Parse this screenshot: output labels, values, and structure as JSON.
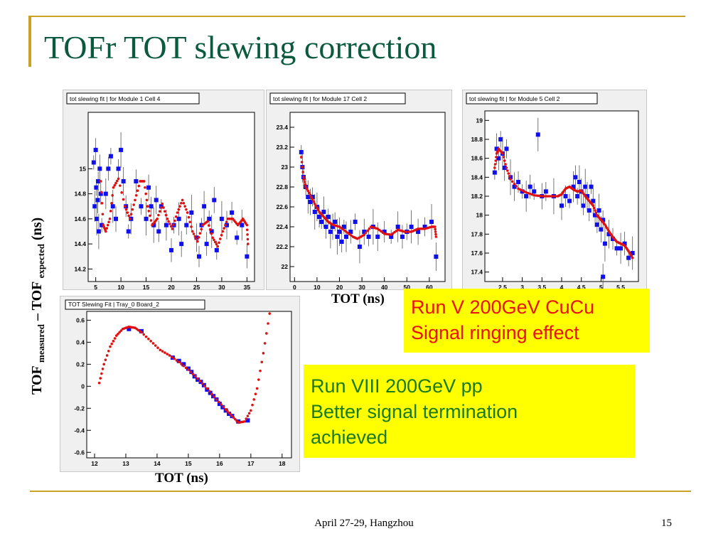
{
  "title": "TOFr TOT slewing correction",
  "y_axis_label": {
    "main1": "TOF",
    "sub1": "measured",
    "dash": " – TOF",
    "sub2": "expected",
    "tail": " (ns)"
  },
  "x_label_top": "TOT (ns)",
  "x_label_bottom": "TOT (ns)",
  "box_run5": {
    "line1": "Run V 200GeV CuCu",
    "line2": "Signal ringing effect"
  },
  "box_run8": {
    "line1": "Run VIII 200GeV pp",
    "line2": "Better signal termination",
    "line3": "achieved"
  },
  "footer": {
    "center": "April 27-29, Hangzhou",
    "page": "15"
  },
  "colors": {
    "title": "#0b5a3e",
    "marker": "#1010ee",
    "fit": "#e01010",
    "frame": "#c9a227",
    "highlight": "#ffff00"
  },
  "chart_data": [
    {
      "type": "scatter",
      "title": "tot slewing fit | for Module 1 Cell 4",
      "xlim": [
        3.5,
        36.5
      ],
      "ylim": [
        14.1,
        15.45
      ],
      "xticks": [
        5,
        10,
        15,
        20,
        25,
        30,
        35
      ],
      "yticks": [
        14.2,
        14.4,
        14.6,
        14.8,
        15
      ],
      "points": [
        [
          4.6,
          15.05
        ],
        [
          4.8,
          14.7
        ],
        [
          5.0,
          15.15
        ],
        [
          5.1,
          14.85
        ],
        [
          5.2,
          14.6
        ],
        [
          5.4,
          14.75
        ],
        [
          5.5,
          14.9
        ],
        [
          5.6,
          14.5
        ],
        [
          5.8,
          15.0
        ],
        [
          6.0,
          14.8
        ],
        [
          6.2,
          14.55
        ],
        [
          7.0,
          14.8
        ],
        [
          7.5,
          15.0
        ],
        [
          8.0,
          15.1
        ],
        [
          8.4,
          14.7
        ],
        [
          9.0,
          14.6
        ],
        [
          9.5,
          15.0
        ],
        [
          10.0,
          15.15
        ],
        [
          10.5,
          14.9
        ],
        [
          11.0,
          14.7
        ],
        [
          11.5,
          14.5
        ],
        [
          12.0,
          14.6
        ],
        [
          13.0,
          14.9
        ],
        [
          14.0,
          14.7
        ],
        [
          15.0,
          14.6
        ],
        [
          15.5,
          14.85
        ],
        [
          16.0,
          14.7
        ],
        [
          16.5,
          14.55
        ],
        [
          17.0,
          14.75
        ],
        [
          17.5,
          14.5
        ],
        [
          18.0,
          14.7
        ],
        [
          19.0,
          14.55
        ],
        [
          20.0,
          14.35
        ],
        [
          20.5,
          14.55
        ],
        [
          21.5,
          14.6
        ],
        [
          22.0,
          14.4
        ],
        [
          23.0,
          14.55
        ],
        [
          24.0,
          14.65
        ],
        [
          25.0,
          14.45
        ],
        [
          25.5,
          14.3
        ],
        [
          26.0,
          14.55
        ],
        [
          26.5,
          14.7
        ],
        [
          27.0,
          14.4
        ],
        [
          27.5,
          14.6
        ],
        [
          28.0,
          14.5
        ],
        [
          28.5,
          14.75
        ],
        [
          29.0,
          14.35
        ],
        [
          30.0,
          14.6
        ],
        [
          31.0,
          14.55
        ],
        [
          32.0,
          14.65
        ],
        [
          33.0,
          14.45
        ],
        [
          34.0,
          14.55
        ],
        [
          35.0,
          14.3
        ]
      ],
      "fit": [
        [
          6.0,
          14.9
        ],
        [
          6.5,
          14.55
        ],
        [
          7.0,
          14.5
        ],
        [
          7.8,
          14.6
        ],
        [
          8.5,
          14.85
        ],
        [
          9.5,
          14.92
        ],
        [
          10.8,
          14.7
        ],
        [
          11.8,
          14.6
        ],
        [
          12.8,
          14.75
        ],
        [
          13.8,
          14.9
        ],
        [
          14.6,
          14.9
        ],
        [
          15.3,
          14.7
        ],
        [
          16.2,
          14.55
        ],
        [
          17.2,
          14.6
        ],
        [
          18.2,
          14.72
        ],
        [
          19.2,
          14.6
        ],
        [
          20.2,
          14.52
        ],
        [
          21.2,
          14.65
        ],
        [
          22.2,
          14.75
        ],
        [
          23.2,
          14.65
        ],
        [
          24.2,
          14.5
        ],
        [
          25.2,
          14.42
        ],
        [
          26.2,
          14.55
        ],
        [
          27.2,
          14.58
        ],
        [
          28.2,
          14.45
        ],
        [
          29.2,
          14.38
        ],
        [
          30.2,
          14.5
        ],
        [
          31.2,
          14.6
        ],
        [
          32.2,
          14.6
        ],
        [
          33.2,
          14.55
        ],
        [
          34.2,
          14.6
        ],
        [
          35.0,
          14.55
        ],
        [
          35.2,
          14.4
        ]
      ]
    },
    {
      "type": "scatter",
      "title": "tot slewing fit | for Module 17 Cell 2",
      "xlim": [
        -2,
        67
      ],
      "ylim": [
        21.85,
        23.55
      ],
      "xticks": [
        0,
        10,
        20,
        30,
        40,
        50,
        60
      ],
      "yticks": [
        22,
        22.2,
        22.4,
        22.6,
        22.8,
        23,
        23.2,
        23.4
      ],
      "points": [
        [
          3,
          23.15
        ],
        [
          3.5,
          23.0
        ],
        [
          4,
          22.9
        ],
        [
          5,
          22.8
        ],
        [
          6,
          22.7
        ],
        [
          7,
          22.65
        ],
        [
          8,
          22.7
        ],
        [
          9,
          22.55
        ],
        [
          10,
          22.6
        ],
        [
          11,
          22.5
        ],
        [
          12,
          22.45
        ],
        [
          13,
          22.55
        ],
        [
          14,
          22.4
        ],
        [
          15,
          22.5
        ],
        [
          16,
          22.35
        ],
        [
          17,
          22.4
        ],
        [
          18,
          22.45
        ],
        [
          19,
          22.3
        ],
        [
          20,
          22.35
        ],
        [
          21,
          22.25
        ],
        [
          22,
          22.4
        ],
        [
          23,
          22.3
        ],
        [
          25,
          22.35
        ],
        [
          27,
          22.45
        ],
        [
          29,
          22.2
        ],
        [
          31,
          22.35
        ],
        [
          33,
          22.3
        ],
        [
          35,
          22.4
        ],
        [
          37,
          22.3
        ],
        [
          40,
          22.35
        ],
        [
          43,
          22.3
        ],
        [
          46,
          22.4
        ],
        [
          48,
          22.3
        ],
        [
          50,
          22.35
        ],
        [
          52,
          22.4
        ],
        [
          55,
          22.35
        ],
        [
          58,
          22.4
        ],
        [
          61,
          22.45
        ],
        [
          63,
          22.1
        ]
      ],
      "fit": [
        [
          3,
          23.1
        ],
        [
          4,
          22.9
        ],
        [
          5,
          22.8
        ],
        [
          7,
          22.72
        ],
        [
          9,
          22.63
        ],
        [
          11,
          22.55
        ],
        [
          13,
          22.5
        ],
        [
          15,
          22.45
        ],
        [
          17,
          22.42
        ],
        [
          20,
          22.4
        ],
        [
          23,
          22.35
        ],
        [
          26,
          22.3
        ],
        [
          28,
          22.28
        ],
        [
          31,
          22.32
        ],
        [
          34,
          22.4
        ],
        [
          37,
          22.38
        ],
        [
          40,
          22.33
        ],
        [
          43,
          22.32
        ],
        [
          46,
          22.37
        ],
        [
          49,
          22.35
        ],
        [
          52,
          22.35
        ],
        [
          55,
          22.38
        ],
        [
          58,
          22.38
        ],
        [
          61,
          22.4
        ],
        [
          62.5,
          22.4
        ],
        [
          63,
          22.3
        ]
      ]
    },
    {
      "type": "scatter",
      "title": "tot slewing fit | for Module 5 Cell 2",
      "xlim": [
        2.05,
        5.95
      ],
      "ylim": [
        17.3,
        19.1
      ],
      "xticks": [
        2.5,
        3,
        3.5,
        4,
        4.5,
        5,
        5.5
      ],
      "yticks": [
        17.4,
        17.6,
        17.8,
        18,
        18.2,
        18.4,
        18.6,
        18.8,
        19
      ],
      "points": [
        [
          2.3,
          18.45
        ],
        [
          2.35,
          18.7
        ],
        [
          2.4,
          18.6
        ],
        [
          2.45,
          18.8
        ],
        [
          2.5,
          18.65
        ],
        [
          2.55,
          18.5
        ],
        [
          2.6,
          18.7
        ],
        [
          2.7,
          18.4
        ],
        [
          2.8,
          18.3
        ],
        [
          2.9,
          18.35
        ],
        [
          3.0,
          18.25
        ],
        [
          3.1,
          18.2
        ],
        [
          3.2,
          18.3
        ],
        [
          3.3,
          18.25
        ],
        [
          3.4,
          18.85
        ],
        [
          3.5,
          18.2
        ],
        [
          3.6,
          18.25
        ],
        [
          3.8,
          18.2
        ],
        [
          4.0,
          18.1
        ],
        [
          4.1,
          18.2
        ],
        [
          4.2,
          18.15
        ],
        [
          4.3,
          18.3
        ],
        [
          4.35,
          18.4
        ],
        [
          4.4,
          18.2
        ],
        [
          4.45,
          18.35
        ],
        [
          4.5,
          18.25
        ],
        [
          4.55,
          18.1
        ],
        [
          4.6,
          18.3
        ],
        [
          4.65,
          18.2
        ],
        [
          4.7,
          18.05
        ],
        [
          4.75,
          18.3
        ],
        [
          4.8,
          18.15
        ],
        [
          4.85,
          18.0
        ],
        [
          4.9,
          17.9
        ],
        [
          4.95,
          18.05
        ],
        [
          5.0,
          17.85
        ],
        [
          5.05,
          17.95
        ],
        [
          5.1,
          17.7
        ],
        [
          5.2,
          17.8
        ],
        [
          5.3,
          17.75
        ],
        [
          5.4,
          17.65
        ],
        [
          5.5,
          17.65
        ],
        [
          5.6,
          17.7
        ],
        [
          5.7,
          17.55
        ],
        [
          5.8,
          17.6
        ],
        [
          5.05,
          17.35
        ]
      ],
      "fit": [
        [
          2.3,
          18.5
        ],
        [
          2.35,
          18.65
        ],
        [
          2.4,
          18.7
        ],
        [
          2.5,
          18.65
        ],
        [
          2.6,
          18.5
        ],
        [
          2.7,
          18.38
        ],
        [
          2.9,
          18.28
        ],
        [
          3.1,
          18.24
        ],
        [
          3.3,
          18.21
        ],
        [
          3.5,
          18.2
        ],
        [
          3.7,
          18.2
        ],
        [
          3.9,
          18.2
        ],
        [
          4.0,
          18.22
        ],
        [
          4.1,
          18.28
        ],
        [
          4.2,
          18.3
        ],
        [
          4.3,
          18.27
        ],
        [
          4.4,
          18.25
        ],
        [
          4.5,
          18.26
        ],
        [
          4.6,
          18.2
        ],
        [
          4.7,
          18.15
        ],
        [
          4.8,
          18.1
        ],
        [
          4.9,
          18.0
        ],
        [
          5.0,
          17.95
        ],
        [
          5.1,
          17.9
        ],
        [
          5.2,
          17.83
        ],
        [
          5.3,
          17.77
        ],
        [
          5.4,
          17.72
        ],
        [
          5.5,
          17.7
        ],
        [
          5.6,
          17.68
        ],
        [
          5.7,
          17.62
        ],
        [
          5.8,
          17.55
        ]
      ]
    },
    {
      "type": "scatter",
      "title": "TOT Slewing Fit | Tray_0 Board_2",
      "xlim": [
        11.75,
        18.3
      ],
      "ylim": [
        -0.65,
        0.68
      ],
      "xticks": [
        12,
        13,
        14,
        15,
        16,
        17,
        18
      ],
      "yticks": [
        -0.6,
        -0.4,
        -0.2,
        0,
        0.2,
        0.4,
        0.6
      ],
      "points": [
        [
          13.1,
          0.52
        ],
        [
          13.5,
          0.5
        ],
        [
          14.5,
          0.26
        ],
        [
          14.7,
          0.23
        ],
        [
          14.85,
          0.2
        ],
        [
          15.0,
          0.16
        ],
        [
          15.1,
          0.13
        ],
        [
          15.2,
          0.09
        ],
        [
          15.3,
          0.06
        ],
        [
          15.4,
          0.04
        ],
        [
          15.5,
          0.01
        ],
        [
          15.6,
          -0.03
        ],
        [
          15.7,
          -0.06
        ],
        [
          15.8,
          -0.09
        ],
        [
          15.9,
          -0.12
        ],
        [
          16.0,
          -0.16
        ],
        [
          16.1,
          -0.19
        ],
        [
          16.2,
          -0.22
        ],
        [
          16.3,
          -0.25
        ],
        [
          16.4,
          -0.27
        ],
        [
          16.6,
          -0.32
        ],
        [
          16.9,
          -0.31
        ]
      ],
      "fit": [
        [
          12.15,
          0.03
        ],
        [
          12.3,
          0.2
        ],
        [
          12.5,
          0.36
        ],
        [
          12.7,
          0.46
        ],
        [
          12.9,
          0.52
        ],
        [
          13.1,
          0.54
        ],
        [
          13.3,
          0.53
        ],
        [
          13.5,
          0.49
        ],
        [
          13.8,
          0.41
        ],
        [
          14.1,
          0.33
        ],
        [
          14.4,
          0.28
        ],
        [
          14.7,
          0.22
        ],
        [
          15.0,
          0.15
        ],
        [
          15.3,
          0.07
        ],
        [
          15.6,
          -0.02
        ],
        [
          15.9,
          -0.12
        ],
        [
          16.2,
          -0.21
        ],
        [
          16.4,
          -0.27
        ],
        [
          16.6,
          -0.33
        ],
        [
          16.8,
          -0.32
        ],
        [
          17.0,
          -0.22
        ],
        [
          17.2,
          -0.02
        ],
        [
          17.4,
          0.3
        ],
        [
          17.6,
          0.66
        ]
      ]
    }
  ]
}
